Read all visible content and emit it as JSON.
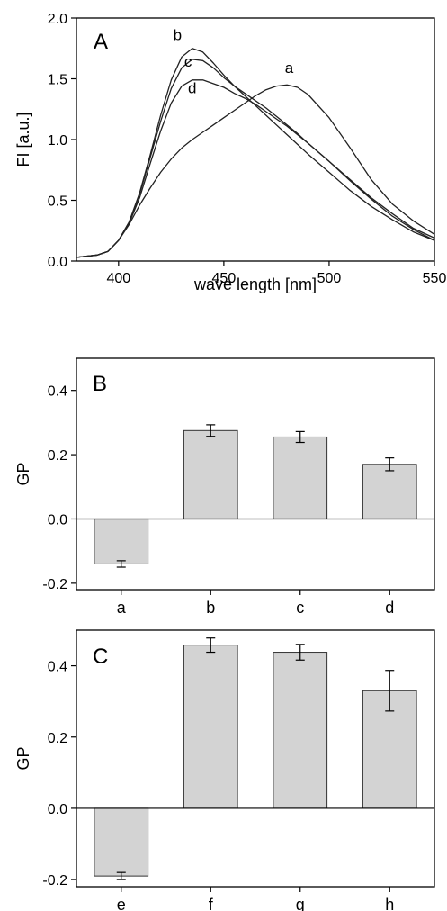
{
  "chart_data": [
    {
      "panel": "A",
      "type": "line",
      "xlabel": "wave length [nm]",
      "ylabel": "FI [a.u.]",
      "xlim": [
        380,
        550
      ],
      "ylim": [
        0,
        2.0
      ],
      "xticks": [
        400,
        450,
        500,
        550
      ],
      "yticks": [
        0.0,
        0.5,
        1.0,
        1.5,
        2.0
      ],
      "xtick_labels": [
        "400",
        "450",
        "500",
        "550"
      ],
      "ytick_labels": [
        "0.0",
        "0.5",
        "1.0",
        "1.5",
        "2.0"
      ],
      "grid": false,
      "series": [
        {
          "name": "a",
          "x": [
            380,
            390,
            395,
            400,
            405,
            410,
            415,
            420,
            425,
            430,
            435,
            440,
            445,
            450,
            455,
            460,
            465,
            470,
            475,
            480,
            485,
            490,
            500,
            510,
            520,
            530,
            540,
            550
          ],
          "y": [
            0.03,
            0.05,
            0.08,
            0.17,
            0.3,
            0.46,
            0.6,
            0.73,
            0.84,
            0.93,
            1.0,
            1.06,
            1.12,
            1.18,
            1.24,
            1.3,
            1.36,
            1.41,
            1.44,
            1.45,
            1.43,
            1.37,
            1.18,
            0.93,
            0.67,
            0.47,
            0.33,
            0.22
          ]
        },
        {
          "name": "b",
          "x": [
            380,
            390,
            395,
            400,
            405,
            410,
            415,
            420,
            425,
            430,
            435,
            440,
            445,
            450,
            455,
            460,
            465,
            470,
            475,
            480,
            485,
            490,
            500,
            510,
            520,
            530,
            540,
            550
          ],
          "y": [
            0.03,
            0.05,
            0.08,
            0.17,
            0.32,
            0.56,
            0.87,
            1.2,
            1.49,
            1.68,
            1.75,
            1.72,
            1.63,
            1.53,
            1.44,
            1.36,
            1.28,
            1.2,
            1.12,
            1.04,
            0.96,
            0.88,
            0.73,
            0.58,
            0.45,
            0.34,
            0.24,
            0.17
          ]
        },
        {
          "name": "c",
          "x": [
            380,
            390,
            395,
            400,
            405,
            410,
            415,
            420,
            425,
            430,
            435,
            440,
            445,
            450,
            455,
            460,
            465,
            470,
            475,
            480,
            485,
            490,
            500,
            510,
            520,
            530,
            540,
            550
          ],
          "y": [
            0.03,
            0.05,
            0.08,
            0.17,
            0.32,
            0.55,
            0.85,
            1.15,
            1.42,
            1.59,
            1.66,
            1.65,
            1.59,
            1.51,
            1.44,
            1.38,
            1.32,
            1.26,
            1.19,
            1.12,
            1.05,
            0.97,
            0.82,
            0.66,
            0.51,
            0.37,
            0.26,
            0.17
          ]
        },
        {
          "name": "d",
          "x": [
            380,
            390,
            395,
            400,
            405,
            410,
            415,
            420,
            425,
            430,
            435,
            440,
            445,
            450,
            455,
            460,
            465,
            470,
            475,
            480,
            485,
            490,
            500,
            510,
            520,
            530,
            540,
            550
          ],
          "y": [
            0.03,
            0.05,
            0.08,
            0.17,
            0.31,
            0.52,
            0.8,
            1.07,
            1.3,
            1.44,
            1.49,
            1.49,
            1.46,
            1.43,
            1.38,
            1.34,
            1.29,
            1.23,
            1.17,
            1.11,
            1.04,
            0.97,
            0.82,
            0.67,
            0.52,
            0.39,
            0.27,
            0.19
          ]
        }
      ],
      "curve_labels": [
        {
          "text": "a",
          "x": 481,
          "y": 1.55
        },
        {
          "text": "b",
          "x": 428,
          "y": 1.82
        },
        {
          "text": "c",
          "x": 433,
          "y": 1.6
        },
        {
          "text": "d",
          "x": 435,
          "y": 1.38
        }
      ]
    },
    {
      "panel": "B",
      "type": "bar",
      "categories": [
        "a",
        "b",
        "c",
        "d"
      ],
      "values": [
        -0.14,
        0.275,
        0.255,
        0.17
      ],
      "errors": [
        0.01,
        0.018,
        0.017,
        0.02
      ],
      "ylabel": "GP",
      "xlabel": "",
      "ylim": [
        -0.22,
        0.5
      ],
      "yticks": [
        -0.2,
        0.0,
        0.2,
        0.4
      ],
      "ytick_labels": [
        "-0.2",
        "0.0",
        "0.2",
        "0.4"
      ],
      "bar_color": "#d3d3d3",
      "grid": false
    },
    {
      "panel": "C",
      "type": "bar",
      "categories": [
        "e",
        "f",
        "g",
        "h"
      ],
      "values": [
        -0.19,
        0.458,
        0.438,
        0.33
      ],
      "errors": [
        0.01,
        0.02,
        0.022,
        0.057
      ],
      "ylabel": "GP",
      "xlabel": "",
      "ylim": [
        -0.22,
        0.5
      ],
      "yticks": [
        -0.2,
        0.0,
        0.2,
        0.4
      ],
      "ytick_labels": [
        "-0.2",
        "0.0",
        "0.2",
        "0.4"
      ],
      "bar_color": "#d3d3d3",
      "grid": false
    }
  ]
}
